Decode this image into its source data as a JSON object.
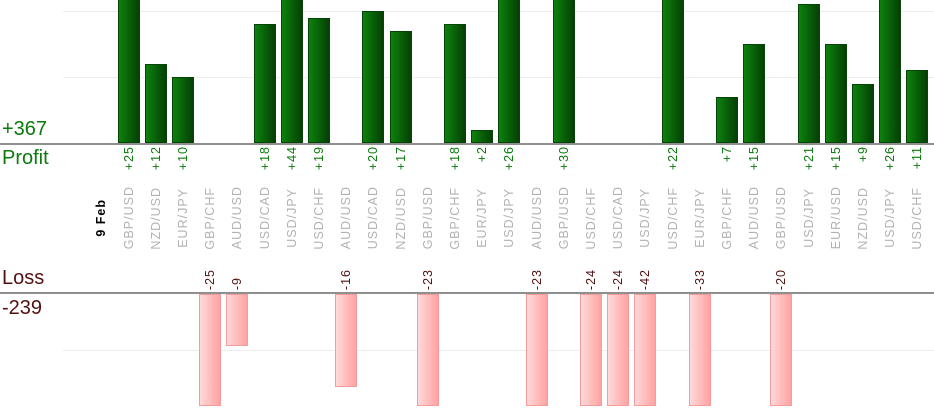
{
  "chart_data": {
    "type": "bar",
    "title": "",
    "date_label": "9 Feb",
    "profit": {
      "label": "Profit",
      "total": "+367"
    },
    "loss": {
      "label": "Loss",
      "total": "-239"
    },
    "trades": [
      {
        "pair": "GBP/USD",
        "value": 25,
        "label": "+25"
      },
      {
        "pair": "NZD/USD",
        "value": 12,
        "label": "+12"
      },
      {
        "pair": "EUR/JPY",
        "value": 10,
        "label": "+10"
      },
      {
        "pair": "GBP/CHF",
        "value": -25,
        "label": "-25"
      },
      {
        "pair": "AUD/USD",
        "value": -9,
        "label": "-9"
      },
      {
        "pair": "USD/CAD",
        "value": 18,
        "label": "+18"
      },
      {
        "pair": "USD/JPY",
        "value": 44,
        "label": "+44"
      },
      {
        "pair": "USD/CHF",
        "value": 19,
        "label": "+19"
      },
      {
        "pair": "AUD/USD",
        "value": -16,
        "label": "-16"
      },
      {
        "pair": "USD/CAD",
        "value": 20,
        "label": "+20"
      },
      {
        "pair": "NZD/USD",
        "value": 17,
        "label": "+17"
      },
      {
        "pair": "GBP/USD",
        "value": -23,
        "label": "-23"
      },
      {
        "pair": "GBP/CHF",
        "value": 18,
        "label": "+18"
      },
      {
        "pair": "EUR/JPY",
        "value": 2,
        "label": "+2"
      },
      {
        "pair": "USD/JPY",
        "value": 26,
        "label": "+26"
      },
      {
        "pair": "AUD/USD",
        "value": -23,
        "label": "-23"
      },
      {
        "pair": "GBP/USD",
        "value": 30,
        "label": "+30"
      },
      {
        "pair": "USD/CHF",
        "value": -24,
        "label": "-24"
      },
      {
        "pair": "USD/CAD",
        "value": -24,
        "label": "-24"
      },
      {
        "pair": "USD/JPY",
        "value": -42,
        "label": "-42"
      },
      {
        "pair": "USD/CHF",
        "value": 22,
        "label": "+22"
      },
      {
        "pair": "EUR/JPY",
        "value": -33,
        "label": "-33"
      },
      {
        "pair": "GBP/CHF",
        "value": 7,
        "label": "+7"
      },
      {
        "pair": "AUD/USD",
        "value": 15,
        "label": "+15"
      },
      {
        "pair": "GBP/USD",
        "value": -20,
        "label": "-20"
      },
      {
        "pair": "USD/JPY",
        "value": 21,
        "label": "+21"
      },
      {
        "pair": "EUR/USD",
        "value": 15,
        "label": "+15"
      },
      {
        "pair": "NZD/USD",
        "value": 9,
        "label": "+9"
      },
      {
        "pair": "USD/JPY",
        "value": 26,
        "label": "+26"
      },
      {
        "pair": "USD/CHF",
        "value": 11,
        "label": "+11"
      }
    ],
    "axes": {
      "profit_gridline_values": [
        10,
        20
      ],
      "loss_gridline_values": [
        10
      ],
      "profit_visible_max": 21.7,
      "loss_visible_max": 19.3,
      "grid": true,
      "legend": "none"
    },
    "colors": {
      "profit_text": "#0c7a0c",
      "loss_text": "#521212",
      "pair_text": "#b2b2b2",
      "date_text": "#000000",
      "bar_green_light": "#0c820c",
      "bar_green_dark": "#053f05",
      "bar_pink_light": "#ffd9d9",
      "bar_pink_dark": "#ffa2a2",
      "axis_line": "#8f8f8f",
      "gridline": "#ededed"
    }
  }
}
